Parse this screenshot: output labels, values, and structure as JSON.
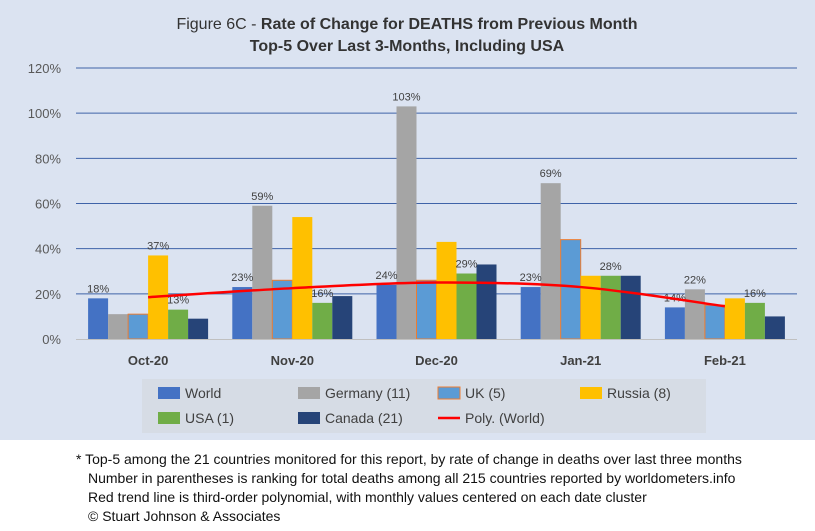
{
  "chart_data": {
    "type": "bar",
    "title_prefix": "Figure 6C - ",
    "title_main": "Rate of Change for DEATHS from Previous Month",
    "subtitle": "Top-5 Over Last 3-Months, Including USA",
    "categories": [
      "Oct-20",
      "Nov-20",
      "Dec-20",
      "Jan-21",
      "Feb-21"
    ],
    "y_ticks": [
      "0%",
      "20%",
      "40%",
      "60%",
      "80%",
      "100%",
      "120%"
    ],
    "ylim": [
      0,
      120
    ],
    "y_unit": "%",
    "grid": true,
    "legend_position": "bottom",
    "series": [
      {
        "name": "World",
        "color": "#4472c4",
        "values": [
          18,
          23,
          24,
          23,
          14
        ],
        "labels": [
          "18%",
          "23%",
          "24%",
          "23%",
          "14%"
        ]
      },
      {
        "name": "Germany (11)",
        "color": "#a5a5a5",
        "values": [
          11,
          59,
          103,
          69,
          22
        ],
        "labels": [
          "",
          "59%",
          "103%",
          "69%",
          "22%"
        ]
      },
      {
        "name": "UK (5)",
        "color": "#5b9bd5",
        "values": [
          11,
          26,
          26,
          44,
          15
        ],
        "labels": [
          "",
          "",
          "",
          "",
          ""
        ]
      },
      {
        "name": "Russia (8)",
        "color": "#ffc000",
        "values": [
          37,
          54,
          43,
          28,
          18
        ],
        "labels": [
          "37%",
          "",
          "",
          "",
          ""
        ]
      },
      {
        "name": "USA (1)",
        "color": "#70ad47",
        "values": [
          13,
          16,
          29,
          28,
          16
        ],
        "labels": [
          "13%",
          "16%",
          "29%",
          "28%",
          "16%"
        ]
      },
      {
        "name": "Canada (21)",
        "color": "#264478",
        "values": [
          9,
          19,
          33,
          28,
          10
        ],
        "labels": [
          "",
          "",
          "",
          "",
          ""
        ]
      }
    ],
    "trendline": {
      "name": "Poly. (World)",
      "color": "#ff0000",
      "values": [
        18.5,
        22.5,
        25,
        23,
        14.5
      ]
    }
  },
  "footnotes": [
    "* Top-5 among the 21 countries monitored for this report, by rate of change in deaths over last three months",
    "Number in parentheses is ranking for total deaths among all 215 countries reported by worldometers.info",
    "Red trend line is third-order polynomial, with monthly values centered on each date cluster",
    "© Stuart Johnson & Associates"
  ]
}
